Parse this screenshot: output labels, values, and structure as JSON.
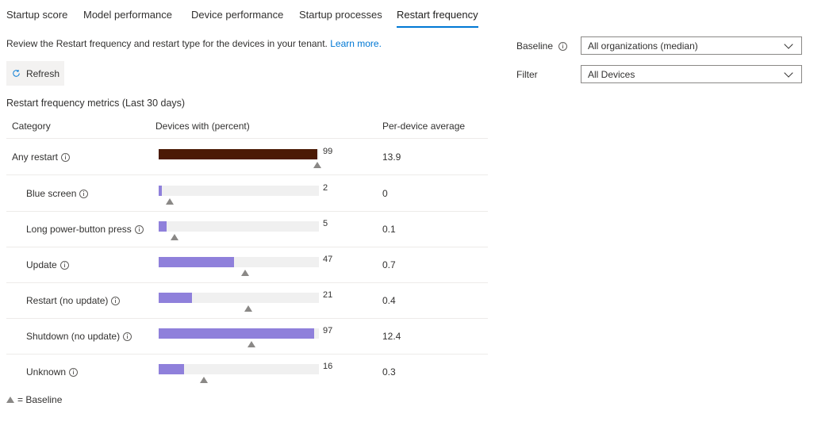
{
  "tabs": [
    "Startup score",
    "Model performance",
    "Device performance",
    "Startup processes",
    "Restart frequency"
  ],
  "active_tab": "Restart frequency",
  "description": {
    "text": "Review the Restart frequency and restart type for the devices in your tenant.",
    "link": "Learn more."
  },
  "refresh_label": "Refresh",
  "metrics_title": "Restart frequency metrics (Last 30 days)",
  "columns": [
    "Category",
    "Devices with (percent)",
    "Per-device average"
  ],
  "rows": [
    {
      "category": "Any restart",
      "percent": 99,
      "baseline": 99,
      "average": "13.9"
    },
    {
      "category": "Blue screen",
      "percent": 2,
      "baseline": 7,
      "average": "0"
    },
    {
      "category": "Long power-button press",
      "percent": 5,
      "baseline": 10,
      "average": "0.1"
    },
    {
      "category": "Update",
      "percent": 47,
      "baseline": 54,
      "average": "0.7"
    },
    {
      "category": "Restart (no update)",
      "percent": 21,
      "baseline": 56,
      "average": "0.4"
    },
    {
      "category": "Shutdown (no update)",
      "percent": 97,
      "baseline": 58,
      "average": "12.4"
    },
    {
      "category": "Unknown",
      "percent": 16,
      "baseline": 28,
      "average": "0.3"
    }
  ],
  "legend": "= Baseline",
  "baseline_label": "Baseline",
  "baseline_value": "All organizations (median)",
  "filter_label": "Filter",
  "filter_value": "All Devices",
  "colors": {
    "total_bar": "#4b1a05",
    "category_bar": "#8f80db",
    "track": "#f0f0f0",
    "accent": "#0078d4"
  }
}
